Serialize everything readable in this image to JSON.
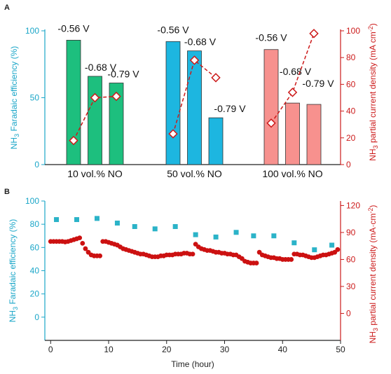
{
  "chart_data": [
    {
      "panel": "A",
      "type": "bar",
      "categories": [
        "10 vol.% NO",
        "50 vol.% NO",
        "100 vol.% NO"
      ],
      "potentials": [
        "-0.56 V",
        "-0.68 V",
        "-0.79 V"
      ],
      "ylabel": "NH3 Faradaic efficiency (%)",
      "ylabel_parts": {
        "pre": "NH",
        "sub": "3",
        "post": " Faradaic efficiency (%)"
      },
      "ylabel_right": "NH3 partial current density (mA cm-2)",
      "ylabel_right_parts": {
        "pre": "NH",
        "sub": "3",
        "mid": " partial current density (mA cm",
        "sup": "-2",
        "post": ")"
      },
      "ylim": [
        0,
        100
      ],
      "yticks": [
        0,
        50,
        100
      ],
      "ylim_right": [
        0,
        100
      ],
      "yticks_right": [
        0,
        20,
        40,
        60,
        80,
        100
      ],
      "series": [
        {
          "group": "10 vol.% NO",
          "color": "#1dbf7e",
          "fe": [
            93,
            66,
            61
          ],
          "current_density": [
            18,
            50,
            51
          ]
        },
        {
          "group": "50 vol.% NO",
          "color": "#1db6e0",
          "fe": [
            92,
            85,
            35
          ],
          "current_density": [
            23,
            78,
            65
          ]
        },
        {
          "group": "100 vol.% NO",
          "color": "#f7918e",
          "fe": [
            86,
            46,
            45
          ],
          "current_density": [
            31,
            54,
            98
          ]
        }
      ],
      "left_axis_color": "#1aa6c8",
      "right_axis_color": "#cc1a1a"
    },
    {
      "panel": "B",
      "type": "scatter",
      "xlabel": "Time (hour)",
      "xlim": [
        -1,
        50
      ],
      "xticks": [
        0,
        10,
        20,
        30,
        40,
        50
      ],
      "ylabel": "NH3 Faradaic efficiency (%)",
      "ylabel_parts": {
        "pre": "NH",
        "sub": "3",
        "post": " Faradaic efficiency (%)"
      },
      "ylim": [
        -20,
        100
      ],
      "yticks": [
        0,
        20,
        40,
        60,
        80,
        100
      ],
      "ylabel_right": "NH3 partial current density (mA cm-2)",
      "ylabel_right_parts": {
        "pre": "NH",
        "sub": "3",
        "mid": " partial current density (mA·cm",
        "sup": "-2",
        "post": ")"
      },
      "ylim_right": [
        -30,
        125
      ],
      "yticks_right": [
        0,
        30,
        60,
        90,
        120
      ],
      "series": [
        {
          "name_hidden": "FE",
          "color": "#2bb3c8",
          "marker": "square",
          "x": [
            1,
            4.5,
            8,
            11.5,
            14.5,
            18,
            21.5,
            25,
            28.5,
            32,
            35,
            38.5,
            42,
            45.5,
            48.5
          ],
          "y": [
            84,
            84,
            85,
            81,
            78,
            76,
            78,
            71,
            69,
            73,
            70,
            70,
            64,
            58,
            62
          ]
        },
        {
          "name_hidden": "J",
          "color": "#cc1111",
          "marker": "circle",
          "x": [
            0,
            0.5,
            1,
            1.5,
            2,
            2.5,
            3,
            3.5,
            4,
            4.5,
            5,
            5.5,
            6,
            6.5,
            7,
            7.5,
            8,
            8.5,
            9,
            9.5,
            10,
            10.5,
            11,
            11.5,
            12,
            12.5,
            13,
            13.5,
            14,
            14.5,
            15,
            15.5,
            16,
            16.5,
            17,
            17.5,
            18,
            18.5,
            19,
            19.5,
            20,
            20.5,
            21,
            21.5,
            22,
            22.5,
            23,
            23.5,
            24,
            24.5,
            25,
            25.5,
            26,
            26.5,
            27,
            27.5,
            28,
            28.5,
            29,
            29.5,
            30,
            30.5,
            31,
            31.5,
            32,
            32.5,
            33,
            33.5,
            34,
            34.5,
            35,
            35.5,
            36,
            36.5,
            37,
            37.5,
            38,
            38.5,
            39,
            39.5,
            40,
            40.5,
            41,
            41.5,
            42,
            42.5,
            43,
            43.5,
            44,
            44.5,
            45,
            45.5,
            46,
            46.5,
            47,
            47.5,
            48,
            48.5,
            49,
            49.5
          ],
          "y": [
            80,
            80,
            80,
            80,
            80,
            79.5,
            80,
            81,
            82,
            83,
            84,
            78,
            72,
            68,
            65,
            64,
            64,
            64,
            80,
            80,
            79,
            78,
            77,
            76,
            74,
            72,
            71,
            70,
            69,
            68,
            67,
            66,
            66,
            65,
            64,
            63,
            63,
            63,
            64,
            64,
            65,
            65,
            65,
            66,
            66,
            66,
            67,
            67,
            66,
            66,
            77,
            74,
            72,
            71,
            70,
            70,
            69,
            68,
            68,
            67,
            67,
            66,
            66,
            65,
            65,
            63,
            61,
            58,
            57,
            56,
            56,
            56,
            68,
            65,
            64,
            63,
            62,
            62,
            61,
            61,
            60,
            60,
            60,
            60,
            66,
            66,
            65,
            65,
            64,
            63,
            62,
            62,
            63,
            64,
            65,
            65,
            66,
            67,
            68,
            71
          ]
        }
      ],
      "left_axis_color": "#1aa6c8",
      "right_axis_color": "#cc1a1a"
    }
  ]
}
